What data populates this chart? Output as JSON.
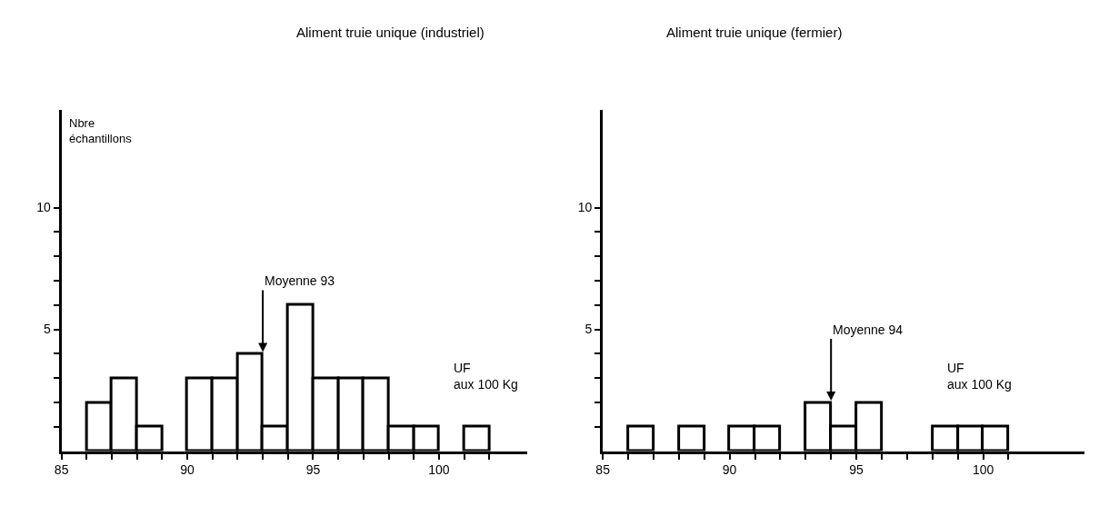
{
  "chart_data": [
    {
      "type": "histogram",
      "title": "Aliment truie unique (industriel)",
      "ylabel": "Nbre\néchantillons",
      "xlabel": "UF\naux 100 Kg",
      "bins": [
        86,
        87,
        88,
        89,
        90,
        91,
        92,
        93,
        94,
        95,
        96,
        97,
        98,
        99,
        100,
        101,
        102
      ],
      "values": [
        2,
        3,
        1,
        0,
        3,
        3,
        4,
        1,
        6,
        3,
        3,
        3,
        1,
        1,
        0,
        1
      ],
      "color": "#ffffff",
      "xlim": [
        85,
        103.5
      ],
      "ylim": [
        0,
        14
      ],
      "xticks": [
        85,
        {
          "value": 86,
          "label": null
        },
        {
          "value": 87,
          "label": null
        },
        {
          "value": 88,
          "label": null
        },
        {
          "value": 89,
          "label": null
        },
        90,
        {
          "value": 91,
          "label": null
        },
        {
          "value": 92,
          "label": null
        },
        {
          "value": 93,
          "label": null
        },
        {
          "value": 94,
          "label": null
        },
        95,
        {
          "value": 96,
          "label": null
        },
        {
          "value": 97,
          "label": null
        },
        {
          "value": 98,
          "label": null
        },
        {
          "value": 99,
          "label": null
        },
        100,
        {
          "value": 101,
          "label": null
        },
        {
          "value": 102,
          "label": null
        }
      ],
      "yticks": [
        {
          "value": 1,
          "label": null
        },
        {
          "value": 2,
          "label": null
        },
        {
          "value": 3,
          "label": null
        },
        {
          "value": 4,
          "label": null
        },
        5,
        {
          "value": 6,
          "label": null
        },
        {
          "value": 7,
          "label": null
        },
        {
          "value": 8,
          "label": null
        },
        {
          "value": 9,
          "label": null
        },
        10
      ],
      "annotations": [
        {
          "text": "Moyenne 93",
          "x": 93,
          "y": 4
        }
      ]
    },
    {
      "type": "histogram",
      "title": "Aliment truie unique (fermier)",
      "xlabel": "UF\naux 100 Kg",
      "bins": [
        86,
        87,
        88,
        89,
        90,
        91,
        92,
        93,
        94,
        95,
        96,
        97,
        98,
        99,
        100,
        101
      ],
      "values": [
        1,
        0,
        1,
        0,
        1,
        1,
        0,
        2,
        1,
        2,
        0,
        0,
        1,
        1,
        1
      ],
      "color": "#ffffff",
      "xlim": [
        85,
        104
      ],
      "ylim": [
        0,
        14
      ],
      "xticks": [
        85,
        {
          "value": 86,
          "label": null
        },
        {
          "value": 87,
          "label": null
        },
        {
          "value": 88,
          "label": null
        },
        {
          "value": 89,
          "label": null
        },
        90,
        {
          "value": 91,
          "label": null
        },
        {
          "value": 92,
          "label": null
        },
        {
          "value": 93,
          "label": null
        },
        {
          "value": 94,
          "label": null
        },
        95,
        {
          "value": 96,
          "label": null
        },
        {
          "value": 97,
          "label": null
        },
        {
          "value": 98,
          "label": null
        },
        {
          "value": 99,
          "label": null
        },
        100,
        {
          "value": 101,
          "label": null
        }
      ],
      "yticks": [
        {
          "value": 1,
          "label": null
        },
        {
          "value": 2,
          "label": null
        },
        {
          "value": 3,
          "label": null
        },
        {
          "value": 4,
          "label": null
        },
        5,
        {
          "value": 6,
          "label": null
        },
        {
          "value": 7,
          "label": null
        },
        {
          "value": 8,
          "label": null
        },
        {
          "value": 9,
          "label": null
        },
        10
      ],
      "annotations": [
        {
          "text": "Moyenne 94",
          "x": 94,
          "y": 2
        }
      ]
    }
  ]
}
